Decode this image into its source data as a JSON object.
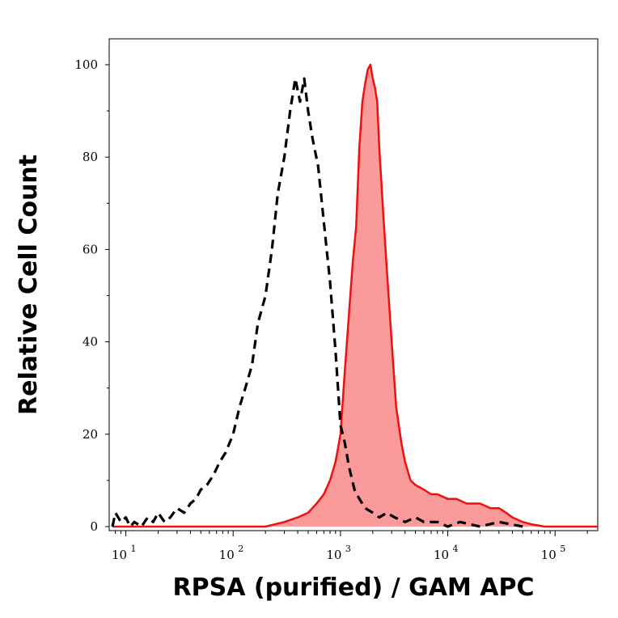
{
  "chart_data": {
    "type": "area",
    "title": "",
    "xlabel": "RPSA (purified) / GAM APC",
    "ylabel": "Relative Cell Count",
    "xscale": "log",
    "xlim": [
      7,
      250000
    ],
    "ylim": [
      0,
      100
    ],
    "grid": false,
    "legend": "none",
    "yticks": [
      {
        "value": 0,
        "label": "0"
      },
      {
        "value": 20,
        "label": "20"
      },
      {
        "value": 40,
        "label": "40"
      },
      {
        "value": 60,
        "label": "60"
      },
      {
        "value": 80,
        "label": "80"
      },
      {
        "value": 100,
        "label": "100"
      }
    ],
    "xticks": [
      {
        "value": 10,
        "base": "10",
        "exp": "1"
      },
      {
        "value": 100,
        "base": "10",
        "exp": "2"
      },
      {
        "value": 1000,
        "base": "10",
        "exp": "3"
      },
      {
        "value": 10000,
        "base": "10",
        "exp": "4"
      },
      {
        "value": 100000,
        "base": "10",
        "exp": "5"
      }
    ],
    "series": [
      {
        "style": "dashed",
        "color": "#000000",
        "fill": "none",
        "x": [
          7.5,
          8,
          9,
          10,
          11,
          12,
          14,
          16,
          18,
          20,
          23,
          26,
          30,
          35,
          40,
          45,
          50,
          57,
          65,
          75,
          85,
          100,
          115,
          130,
          150,
          170,
          200,
          230,
          260,
          300,
          340,
          380,
          420,
          460,
          500,
          550,
          620,
          700,
          800,
          900,
          1000,
          1100,
          1200,
          1350,
          1500,
          1700,
          2000,
          2300,
          2700,
          3200,
          4000,
          5000,
          6000,
          8000,
          10000,
          13000,
          20000,
          30000,
          50000
        ],
        "y": [
          0,
          3,
          1,
          2,
          0,
          1,
          0,
          2,
          1,
          3,
          1,
          2,
          4,
          3,
          5,
          6,
          8,
          9,
          11,
          14,
          16,
          20,
          26,
          30,
          35,
          44,
          50,
          60,
          72,
          80,
          90,
          97,
          92,
          97,
          90,
          84,
          78,
          66,
          53,
          38,
          22,
          18,
          13,
          8,
          6,
          4,
          3,
          2,
          3,
          2,
          1,
          2,
          1,
          1,
          0,
          1,
          0,
          1,
          0
        ]
      },
      {
        "style": "solid",
        "color": "#ee1111",
        "fill": "#fa9a9a",
        "x": [
          7.5,
          100,
          200,
          300,
          400,
          500,
          600,
          700,
          800,
          900,
          1000,
          1100,
          1200,
          1300,
          1400,
          1500,
          1600,
          1700,
          1800,
          1900,
          2000,
          2100,
          2200,
          2300,
          2500,
          2700,
          3000,
          3300,
          3700,
          4000,
          4500,
          5000,
          6000,
          7000,
          8000,
          10000,
          12000,
          15000,
          20000,
          25000,
          30000,
          35000,
          40000,
          50000,
          60000,
          80000,
          100000,
          150000,
          250000
        ],
        "y": [
          0,
          0,
          0,
          1,
          2,
          3,
          5,
          7,
          10,
          14,
          20,
          34,
          46,
          57,
          65,
          82,
          92,
          96,
          99,
          100,
          97,
          95,
          92,
          82,
          68,
          56,
          40,
          26,
          18,
          14,
          10,
          9,
          8,
          7,
          7,
          6,
          6,
          5,
          5,
          4,
          4,
          3,
          2,
          1,
          0.5,
          0,
          0,
          0,
          0
        ]
      }
    ]
  }
}
